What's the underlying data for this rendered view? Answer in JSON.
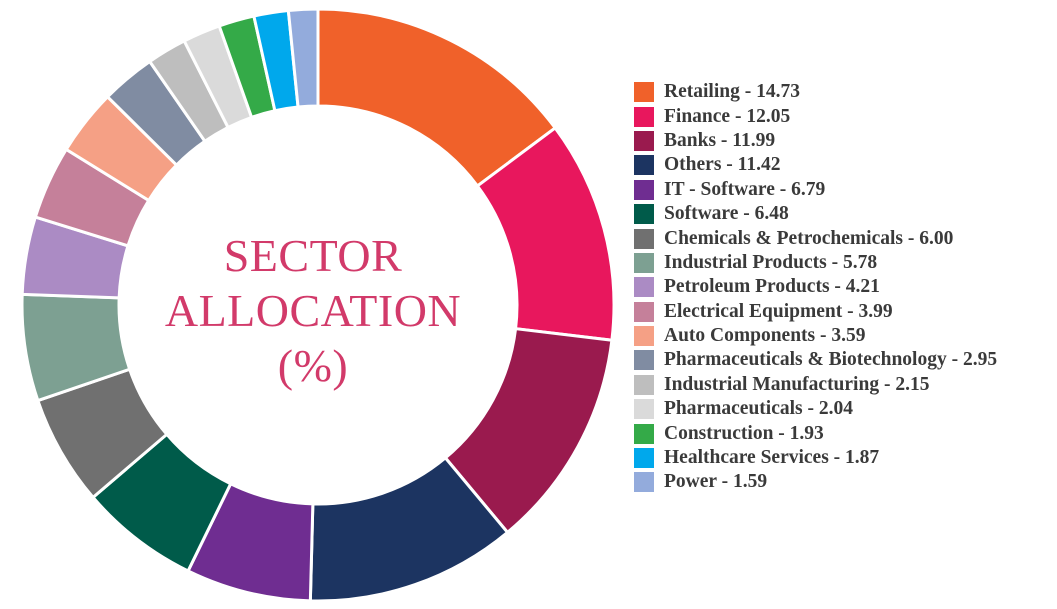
{
  "chart_data": {
    "type": "pie",
    "title_lines": [
      "SECTOR",
      "ALLOCATION",
      "(%)"
    ],
    "legend_position": "right",
    "slices": [
      {
        "label": "Retailing",
        "value": 14.73,
        "value_text": "14.73",
        "color": "#f0612a"
      },
      {
        "label": "Finance",
        "value": 12.05,
        "value_text": "12.05",
        "color": "#e8175d"
      },
      {
        "label": "Banks",
        "value": 11.99,
        "value_text": "11.99",
        "color": "#9a1a4e"
      },
      {
        "label": "Others",
        "value": 11.42,
        "value_text": "11.42",
        "color": "#1c3461"
      },
      {
        "label": "IT - Software",
        "value": 6.79,
        "value_text": "6.79",
        "color": "#6f2d91"
      },
      {
        "label": "Software",
        "value": 6.48,
        "value_text": "6.48",
        "color": "#005b4a"
      },
      {
        "label": "Chemicals & Petrochemicals",
        "value": 6.0,
        "value_text": "6.00",
        "color": "#707070"
      },
      {
        "label": "Industrial Products",
        "value": 5.78,
        "value_text": "5.78",
        "color": "#7da092"
      },
      {
        "label": "Petroleum Products",
        "value": 4.21,
        "value_text": "4.21",
        "color": "#ab8bc4"
      },
      {
        "label": "Electrical Equipment",
        "value": 3.99,
        "value_text": "3.99",
        "color": "#c5809a"
      },
      {
        "label": "Auto Components",
        "value": 3.59,
        "value_text": "3.59",
        "color": "#f5a085"
      },
      {
        "label": "Pharmaceuticals & Biotechnology",
        "value": 2.95,
        "value_text": "2.95",
        "color": "#808ca2"
      },
      {
        "label": "Industrial Manufacturing",
        "value": 2.15,
        "value_text": "2.15",
        "color": "#bebebe"
      },
      {
        "label": "Pharmaceuticals",
        "value": 2.04,
        "value_text": "2.04",
        "color": "#dadada"
      },
      {
        "label": "Construction",
        "value": 1.93,
        "value_text": "1.93",
        "color": "#34aa48"
      },
      {
        "label": "Healthcare Services",
        "value": 1.87,
        "value_text": "1.87",
        "color": "#00a8ec"
      },
      {
        "label": "Power",
        "value": 1.59,
        "value_text": "1.59",
        "color": "#93abdc"
      }
    ]
  }
}
